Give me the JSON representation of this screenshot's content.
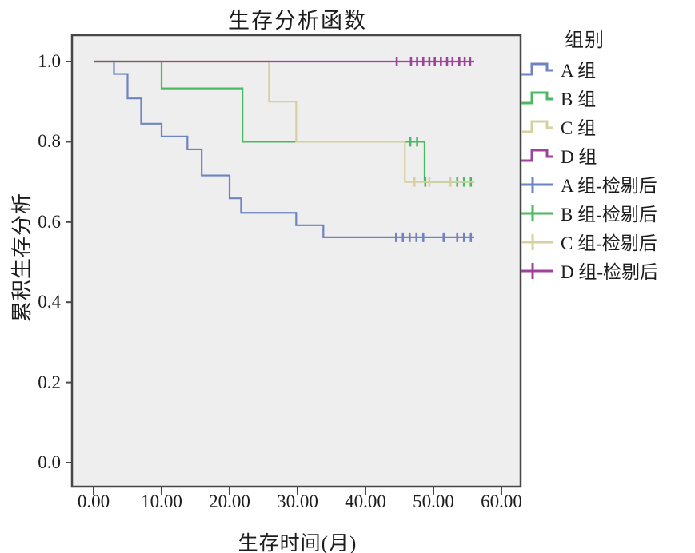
{
  "chart": {
    "title": "生存分析函数",
    "xlabel": "生存时间(月)",
    "ylabel": "累积生存分析"
  },
  "legend": {
    "title": "组别",
    "items": [
      {
        "label": "A 组",
        "type": "step-line",
        "color": "#6e83c2"
      },
      {
        "label": "B 组",
        "type": "step-line",
        "color": "#4bb962"
      },
      {
        "label": "C 组",
        "type": "step-line",
        "color": "#d6d0a0"
      },
      {
        "label": "D 组",
        "type": "step-line",
        "color": "#9e429b"
      },
      {
        "label": "A 组-检剔后",
        "type": "censor-mark",
        "color": "#6e83c2"
      },
      {
        "label": "B 组-检剔后",
        "type": "censor-mark",
        "color": "#4bb962"
      },
      {
        "label": "C 组-检剔后",
        "type": "censor-mark",
        "color": "#d6d0a0"
      },
      {
        "label": "D 组-检剔后",
        "type": "censor-mark",
        "color": "#9e429b"
      }
    ]
  },
  "chart_data": {
    "type": "line",
    "subtype": "kaplan-meier-step",
    "title": "生存分析函数",
    "xlabel": "生存时间(月)",
    "ylabel": "累积生存分析",
    "xlim": [
      0,
      63
    ],
    "ylim": [
      0,
      1.0
    ],
    "grid": false,
    "legend_position": "right",
    "x_ticks": [
      0,
      10,
      20,
      30,
      40,
      50,
      60
    ],
    "x_tick_labels": [
      "0.00",
      "10.00",
      "20.00",
      "30.00",
      "40.00",
      "50.00",
      "60.00"
    ],
    "y_ticks": [
      1.0,
      0.8,
      0.6,
      0.4,
      0.2,
      0.0
    ],
    "y_tick_labels": [
      "1.0",
      "0.8",
      "0.6",
      "0.4",
      "0.2",
      "0.0"
    ],
    "plot_background": "#efeeee",
    "frame_color": "#474747",
    "series": [
      {
        "name": "A组",
        "color": "#6e83c2",
        "end_x": 56,
        "steps": [
          [
            0,
            1.0
          ],
          [
            3,
            0.969
          ],
          [
            5,
            0.908
          ],
          [
            7,
            0.845
          ],
          [
            10,
            0.813
          ],
          [
            13.8,
            0.781
          ],
          [
            15.9,
            0.716
          ],
          [
            20,
            0.659
          ],
          [
            21.7,
            0.623
          ],
          [
            29.8,
            0.592
          ],
          [
            33.8,
            0.562
          ]
        ],
        "censored": [
          [
            44.5,
            0.562
          ],
          [
            45.5,
            0.562
          ],
          [
            46.5,
            0.562
          ],
          [
            47.5,
            0.562
          ],
          [
            48.5,
            0.562
          ],
          [
            51.5,
            0.562
          ],
          [
            53.5,
            0.562
          ],
          [
            54.5,
            0.562
          ],
          [
            55.5,
            0.562
          ]
        ]
      },
      {
        "name": "B组",
        "color": "#4bb962",
        "end_x": 56,
        "steps": [
          [
            0,
            1.0
          ],
          [
            10,
            0.933
          ],
          [
            21.9,
            0.8
          ],
          [
            48.7,
            0.7
          ]
        ],
        "censored": [
          [
            46.6,
            0.8
          ],
          [
            47.6,
            0.8
          ],
          [
            48.8,
            0.7
          ],
          [
            53.5,
            0.7
          ],
          [
            54.5,
            0.7
          ],
          [
            55.5,
            0.7
          ]
        ]
      },
      {
        "name": "C组",
        "color": "#d6d0a0",
        "end_x": 56,
        "steps": [
          [
            0,
            1.0
          ],
          [
            25.8,
            0.9
          ],
          [
            29.8,
            0.8
          ],
          [
            45.8,
            0.7
          ]
        ],
        "censored": [
          [
            47.2,
            0.7
          ],
          [
            49.4,
            0.7
          ],
          [
            52.5,
            0.7
          ]
        ]
      },
      {
        "name": "D组",
        "color": "#9e429b",
        "end_x": 56,
        "steps": [
          [
            0,
            1.0
          ]
        ],
        "censored": [
          [
            44.6,
            1.0
          ],
          [
            46.7,
            1.0
          ],
          [
            47.6,
            1.0
          ],
          [
            48.5,
            1.0
          ],
          [
            49.4,
            1.0
          ],
          [
            50.2,
            1.0
          ],
          [
            51.1,
            1.0
          ],
          [
            52,
            1.0
          ],
          [
            52.8,
            1.0
          ],
          [
            53.8,
            1.0
          ],
          [
            54.6,
            1.0
          ],
          [
            55.4,
            1.0
          ]
        ]
      }
    ]
  }
}
